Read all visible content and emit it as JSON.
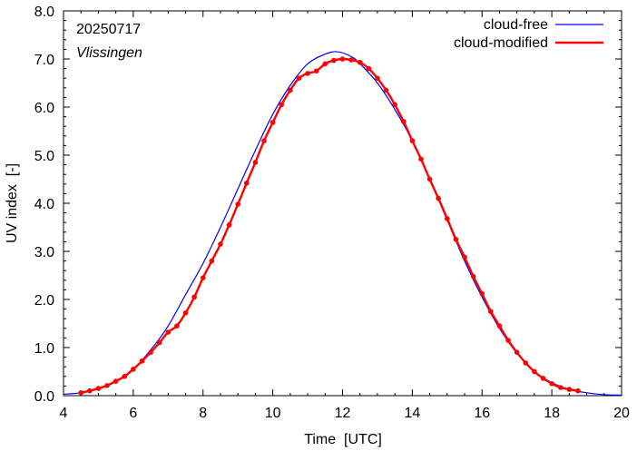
{
  "chart_data": {
    "type": "line",
    "date_label": "20250717",
    "location_label": "Vlissingen",
    "xlabel": "Time  [UTC]",
    "ylabel": "UV index  [-]",
    "xlim": [
      4,
      20
    ],
    "ylim": [
      0,
      8
    ],
    "x_ticks": [
      4,
      6,
      8,
      10,
      12,
      14,
      16,
      18,
      20
    ],
    "x_tick_labels": [
      "4",
      "6",
      "8",
      "10",
      "12",
      "14",
      "16",
      "18",
      "20"
    ],
    "y_ticks": [
      0,
      1,
      2,
      3,
      4,
      5,
      6,
      7,
      8
    ],
    "y_tick_labels": [
      "0.0",
      "1.0",
      "2.0",
      "3.0",
      "4.0",
      "5.0",
      "6.0",
      "7.0",
      "8.0"
    ],
    "grid": false,
    "legend_position": "top-right",
    "series": [
      {
        "name": "cloud-free",
        "color": "#0000ff",
        "markers": false,
        "x": [
          4.0,
          4.5,
          5.0,
          5.5,
          6.0,
          6.5,
          7.0,
          7.5,
          8.0,
          8.5,
          9.0,
          9.5,
          10.0,
          10.5,
          11.0,
          11.5,
          11.85,
          12.25,
          12.5,
          13.0,
          13.5,
          14.0,
          14.5,
          15.0,
          15.5,
          16.0,
          16.5,
          17.0,
          17.5,
          18.0,
          18.5,
          19.0,
          19.5,
          20.0
        ],
        "y": [
          0.03,
          0.06,
          0.15,
          0.3,
          0.55,
          0.95,
          1.45,
          2.1,
          2.75,
          3.5,
          4.3,
          5.1,
          5.85,
          6.45,
          6.9,
          7.1,
          7.15,
          7.05,
          6.9,
          6.5,
          5.95,
          5.3,
          4.5,
          3.65,
          2.8,
          2.05,
          1.4,
          0.88,
          0.5,
          0.27,
          0.13,
          0.06,
          0.02,
          0.01
        ]
      },
      {
        "name": "cloud-modified",
        "color": "#ff0000",
        "markers": true,
        "x": [
          4.5,
          4.75,
          5.0,
          5.25,
          5.5,
          5.75,
          6.0,
          6.25,
          6.5,
          6.75,
          7.0,
          7.25,
          7.5,
          7.75,
          8.0,
          8.25,
          8.5,
          8.75,
          9.0,
          9.25,
          9.5,
          9.75,
          10.0,
          10.25,
          10.5,
          10.75,
          11.0,
          11.25,
          11.5,
          11.75,
          12.0,
          12.25,
          12.5,
          12.75,
          13.0,
          13.25,
          13.5,
          13.75,
          14.0,
          14.25,
          14.5,
          14.75,
          15.0,
          15.25,
          15.5,
          15.75,
          16.0,
          16.25,
          16.5,
          16.75,
          17.0,
          17.25,
          17.5,
          17.75,
          18.0,
          18.25,
          18.5,
          18.75
        ],
        "y": [
          0.06,
          0.1,
          0.15,
          0.21,
          0.3,
          0.4,
          0.55,
          0.72,
          0.9,
          1.1,
          1.32,
          1.45,
          1.72,
          2.05,
          2.45,
          2.8,
          3.15,
          3.55,
          3.98,
          4.42,
          4.85,
          5.3,
          5.68,
          6.05,
          6.35,
          6.6,
          6.7,
          6.75,
          6.9,
          6.97,
          7.0,
          6.98,
          6.93,
          6.8,
          6.6,
          6.35,
          6.05,
          5.7,
          5.3,
          4.92,
          4.5,
          4.1,
          3.68,
          3.25,
          2.88,
          2.48,
          2.12,
          1.75,
          1.45,
          1.15,
          0.9,
          0.68,
          0.5,
          0.36,
          0.25,
          0.17,
          0.13,
          0.1
        ]
      }
    ]
  }
}
